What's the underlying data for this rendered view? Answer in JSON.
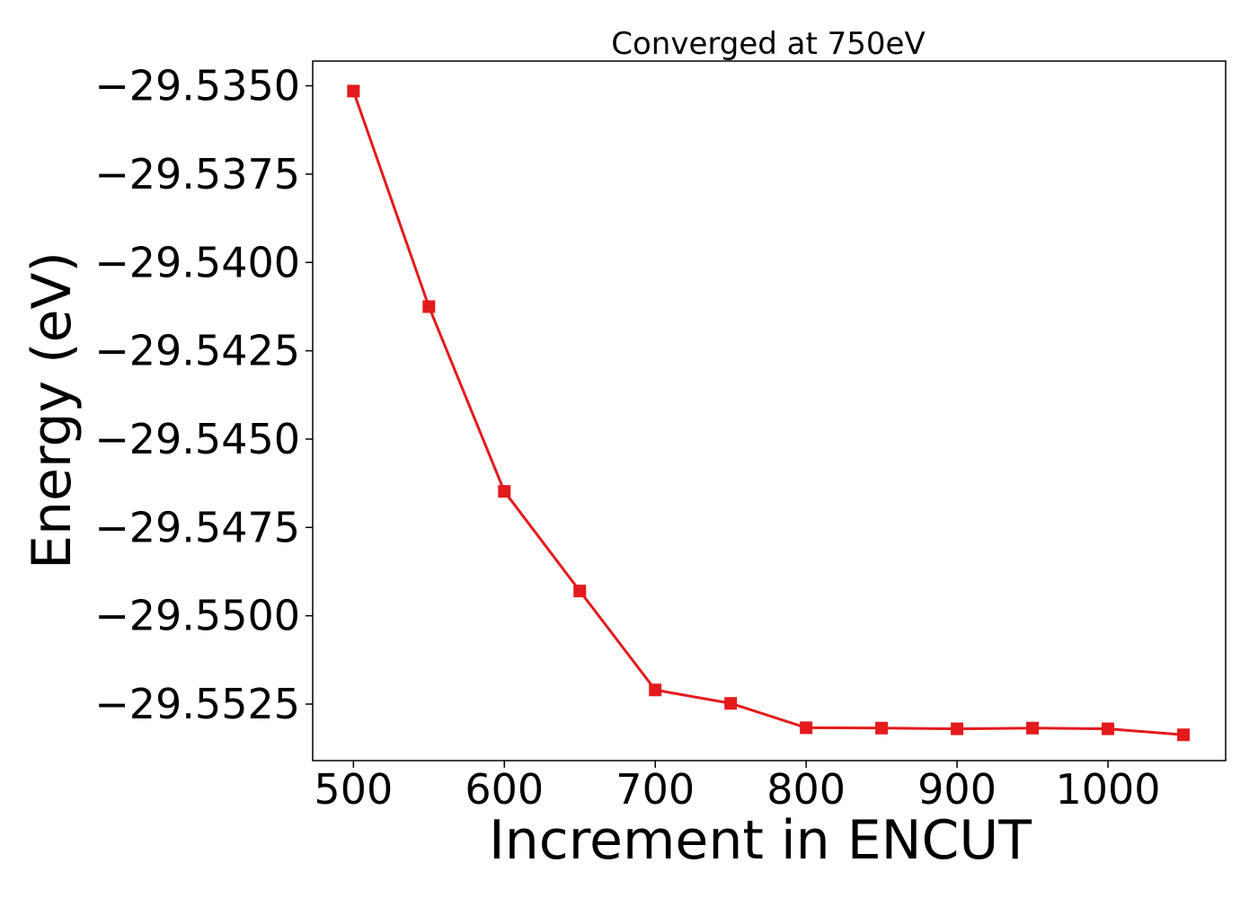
{
  "chart_data": {
    "type": "line",
    "title": "Converged at 750eV",
    "xlabel": "Increment in ENCUT",
    "ylabel": "Energy (eV)",
    "x": [
      500,
      550,
      600,
      650,
      700,
      750,
      800,
      850,
      900,
      950,
      1000,
      1050
    ],
    "series": [
      {
        "values": [
          -29.53515,
          -29.54125,
          -29.54648,
          -29.5493,
          -29.5521,
          -29.55248,
          -29.55317,
          -29.55318,
          -29.5532,
          -29.55318,
          -29.5532,
          -29.55337
        ],
        "color": "#e41a1c",
        "marker": "square"
      }
    ],
    "xlim": [
      473,
      1078
    ],
    "ylim": [
      -29.5541,
      -29.5343
    ],
    "xticks": [
      500,
      600,
      700,
      800,
      900,
      1000
    ],
    "xtick_labels": [
      "500",
      "600",
      "700",
      "800",
      "900",
      "1000"
    ],
    "yticks": [
      -29.535,
      -29.5375,
      -29.54,
      -29.5425,
      -29.545,
      -29.5475,
      -29.55,
      -29.5525
    ],
    "ytick_labels": [
      "−29.5350",
      "−29.5375",
      "−29.5400",
      "−29.5425",
      "−29.5450",
      "−29.5475",
      "−29.5500",
      "−29.5525"
    ],
    "grid": false,
    "legend": "none"
  }
}
